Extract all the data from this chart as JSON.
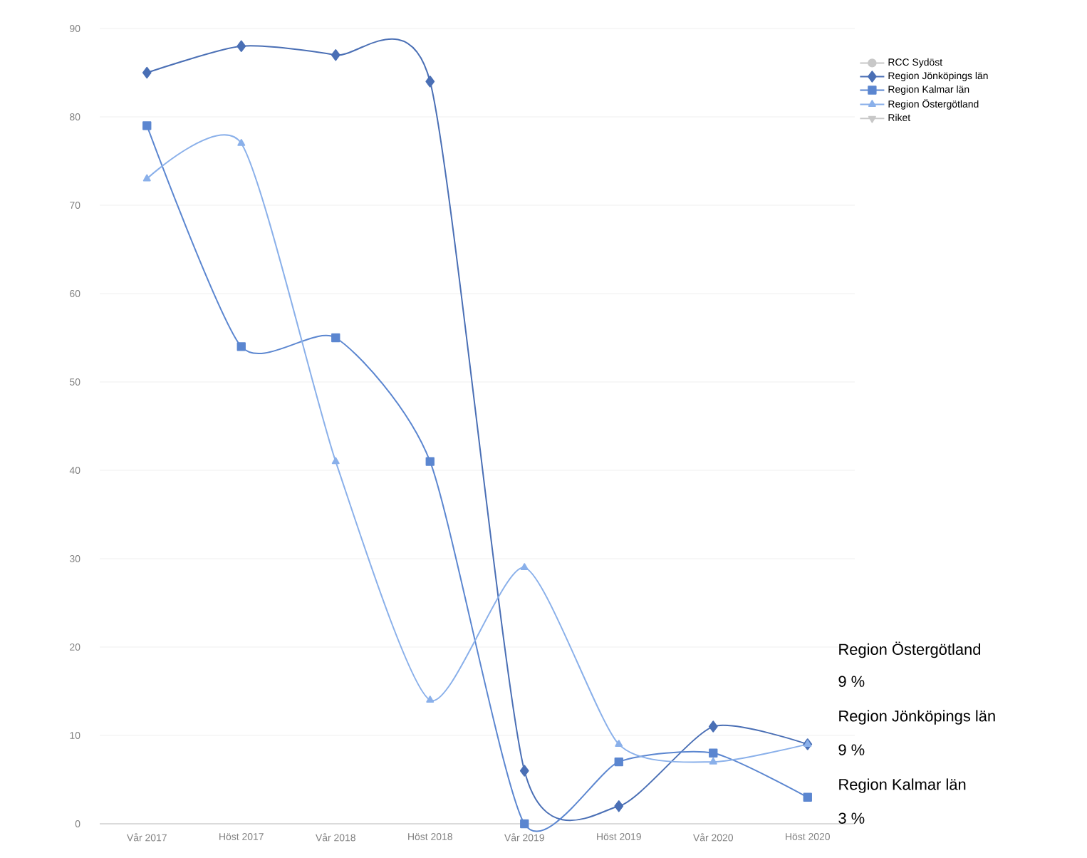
{
  "chart_data": {
    "type": "line",
    "categories": [
      "Vår 2017",
      "Höst 2017",
      "Vår 2018",
      "Höst 2018",
      "Vår 2019",
      "Höst 2019",
      "Vår 2020",
      "Höst 2020"
    ],
    "series": [
      {
        "name": "RCC Sydöst",
        "color": "#c8c8c8",
        "marker": "circle",
        "values": [
          null,
          null,
          null,
          null,
          null,
          null,
          null,
          null
        ]
      },
      {
        "name": "Region Jönköpings län",
        "color": "#4a6fb5",
        "marker": "diamond",
        "values": [
          85,
          88,
          87,
          84,
          6,
          2,
          11,
          9
        ]
      },
      {
        "name": "Region Kalmar län",
        "color": "#5b86d0",
        "marker": "square",
        "values": [
          79,
          54,
          55,
          41,
          0,
          7,
          8,
          3
        ]
      },
      {
        "name": "Region Östergötland",
        "color": "#8ab0ea",
        "marker": "triangle",
        "values": [
          73,
          77,
          41,
          14,
          29,
          9,
          7,
          9
        ]
      },
      {
        "name": "Riket",
        "color": "#c8c8c8",
        "marker": "triangle down",
        "values": [
          null,
          null,
          null,
          null,
          null,
          null,
          null,
          null
        ]
      }
    ],
    "ylim": [
      0,
      90
    ],
    "yticks": [
      0,
      10,
      20,
      30,
      40,
      50,
      60,
      70,
      80,
      90
    ],
    "grid": "y",
    "legend": "top right",
    "annotations": [
      "Region Östergötland",
      "9 %",
      "Region Jönköpings län",
      "9 %",
      "Region Kalmar län",
      "3 %"
    ]
  }
}
